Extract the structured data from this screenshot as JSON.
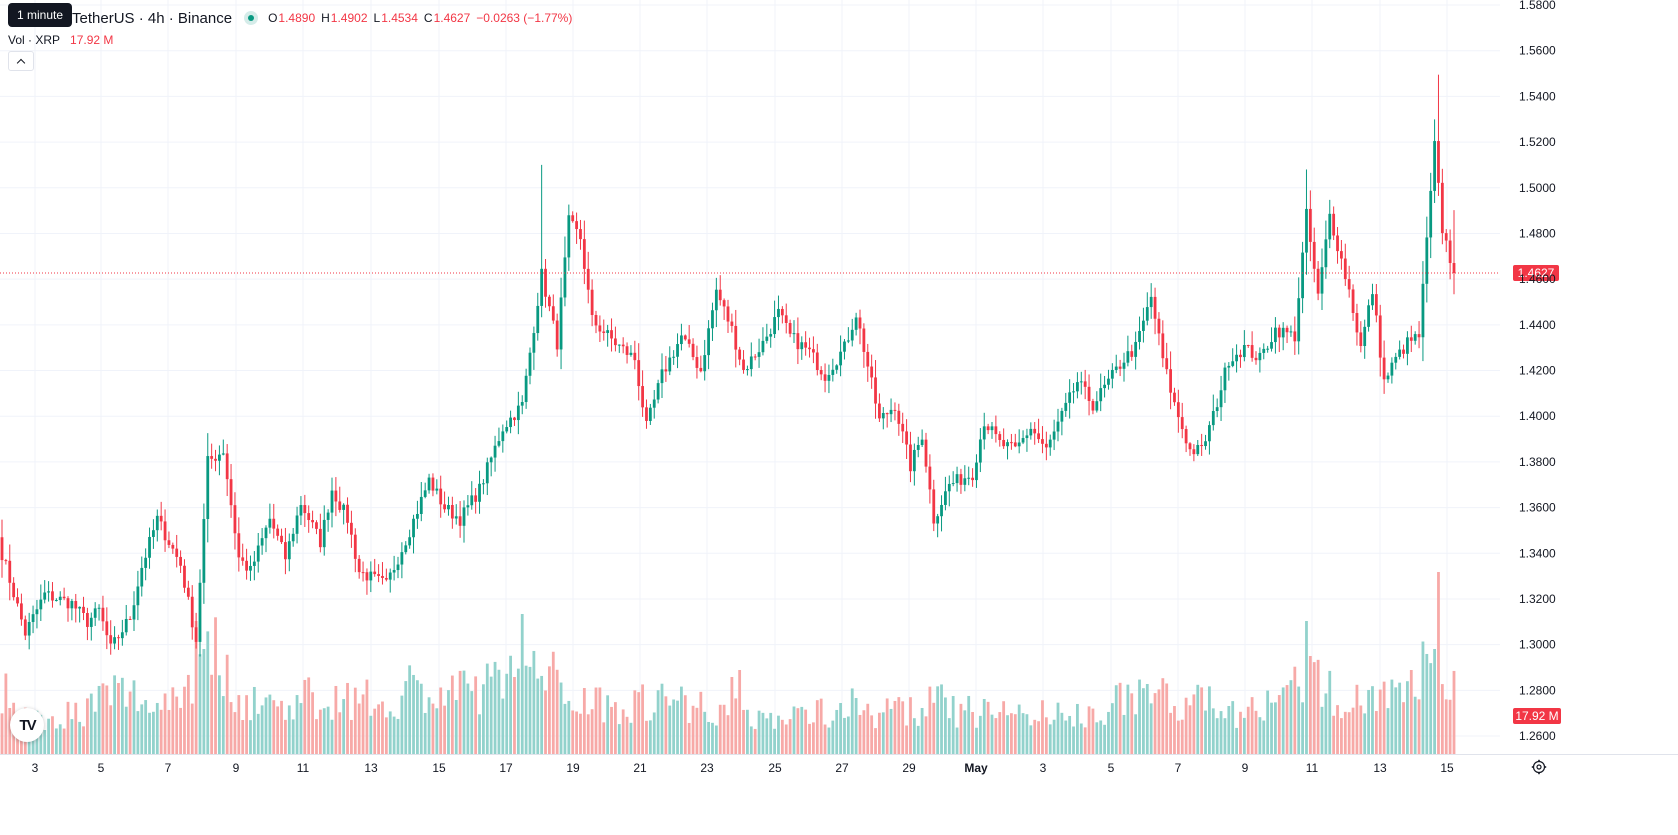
{
  "tooltip": "1 minute",
  "legend": {
    "symbol_title": "TetherUS · 4h · Binance",
    "open_key": "O",
    "open_val": "1.4890",
    "high_key": "H",
    "high_val": "1.4902",
    "low_key": "L",
    "low_val": "1.4534",
    "close_key": "C",
    "close_val": "1.4627",
    "change": "−0.0263 (−1.77%)",
    "volume_label": "Vol · XRP",
    "volume_value": "17.92 M"
  },
  "colors": {
    "up": "#089981",
    "down": "#f23645",
    "vol_up": "#92d2cc",
    "vol_down": "#f7a9a7",
    "grid": "#f0f3fa",
    "text": "#131722"
  },
  "icons": {
    "logo": "tradingview-logo",
    "settings": "gear-icon",
    "collapse": "chevron-up-icon"
  },
  "logo_text": "TV",
  "chart_data": {
    "type": "candlestick",
    "ylim": [
      1.25,
      1.58
    ],
    "y_ticks": [
      "1.2600",
      "1.2800",
      "1.3000",
      "1.3200",
      "1.3400",
      "1.3600",
      "1.3800",
      "1.4000",
      "1.4200",
      "1.4400",
      "1.4600",
      "1.4800",
      "1.5000",
      "1.5200",
      "1.5400",
      "1.5600",
      "1.5800"
    ],
    "x_ticks": [
      "3",
      "5",
      "7",
      "9",
      "11",
      "13",
      "15",
      "17",
      "19",
      "21",
      "23",
      "25",
      "27",
      "29",
      "May",
      "3",
      "5",
      "7",
      "9",
      "11",
      "13",
      "15"
    ],
    "last_price": "1.4627",
    "last_volume": "17.92 M",
    "grid": true,
    "price_anchors": [
      [
        0,
        1.34
      ],
      [
        6,
        1.305
      ],
      [
        11,
        1.322
      ],
      [
        18,
        1.318
      ],
      [
        22,
        1.31
      ],
      [
        25,
        1.315
      ],
      [
        28,
        1.298
      ],
      [
        33,
        1.312
      ],
      [
        36,
        1.334
      ],
      [
        40,
        1.355
      ],
      [
        46,
        1.335
      ],
      [
        50,
        1.302
      ],
      [
        53,
        1.38
      ],
      [
        57,
        1.385
      ],
      [
        61,
        1.338
      ],
      [
        64,
        1.332
      ],
      [
        69,
        1.355
      ],
      [
        73,
        1.338
      ],
      [
        77,
        1.362
      ],
      [
        82,
        1.345
      ],
      [
        85,
        1.368
      ],
      [
        89,
        1.355
      ],
      [
        92,
        1.332
      ],
      [
        99,
        1.326
      ],
      [
        105,
        1.35
      ],
      [
        110,
        1.372
      ],
      [
        114,
        1.36
      ],
      [
        118,
        1.355
      ],
      [
        123,
        1.368
      ],
      [
        129,
        1.395
      ],
      [
        134,
        1.405
      ],
      [
        139,
        1.462
      ],
      [
        143,
        1.432
      ],
      [
        146,
        1.485
      ],
      [
        149,
        1.478
      ],
      [
        152,
        1.442
      ],
      [
        158,
        1.432
      ],
      [
        163,
        1.425
      ],
      [
        166,
        1.395
      ],
      [
        170,
        1.418
      ],
      [
        175,
        1.435
      ],
      [
        180,
        1.42
      ],
      [
        184,
        1.455
      ],
      [
        188,
        1.438
      ],
      [
        191,
        1.42
      ],
      [
        196,
        1.432
      ],
      [
        200,
        1.445
      ],
      [
        203,
        1.435
      ],
      [
        208,
        1.428
      ],
      [
        212,
        1.418
      ],
      [
        217,
        1.43
      ],
      [
        220,
        1.445
      ],
      [
        223,
        1.422
      ],
      [
        226,
        1.398
      ],
      [
        230,
        1.405
      ],
      [
        234,
        1.378
      ],
      [
        237,
        1.392
      ],
      [
        240,
        1.355
      ],
      [
        244,
        1.37
      ],
      [
        250,
        1.375
      ],
      [
        253,
        1.398
      ],
      [
        257,
        1.388
      ],
      [
        261,
        1.385
      ],
      [
        265,
        1.395
      ],
      [
        269,
        1.385
      ],
      [
        273,
        1.4
      ],
      [
        277,
        1.415
      ],
      [
        281,
        1.405
      ],
      [
        285,
        1.415
      ],
      [
        289,
        1.425
      ],
      [
        292,
        1.43
      ],
      [
        296,
        1.452
      ],
      [
        299,
        1.425
      ],
      [
        302,
        1.405
      ],
      [
        306,
        1.385
      ],
      [
        309,
        1.385
      ],
      [
        312,
        1.4
      ],
      [
        316,
        1.425
      ],
      [
        320,
        1.43
      ],
      [
        324,
        1.425
      ],
      [
        328,
        1.438
      ],
      [
        333,
        1.435
      ],
      [
        336,
        1.488
      ],
      [
        339,
        1.452
      ],
      [
        342,
        1.488
      ],
      [
        344,
        1.475
      ],
      [
        347,
        1.455
      ],
      [
        350,
        1.43
      ],
      [
        353,
        1.455
      ],
      [
        356,
        1.415
      ],
      [
        359,
        1.425
      ],
      [
        362,
        1.432
      ],
      [
        365,
        1.435
      ],
      [
        369,
        1.518
      ],
      [
        371,
        1.482
      ],
      [
        374,
        1.4627
      ]
    ],
    "volume_anchors": [
      [
        0,
        0.45
      ],
      [
        8,
        0.25
      ],
      [
        20,
        0.3
      ],
      [
        30,
        0.45
      ],
      [
        40,
        0.35
      ],
      [
        50,
        0.55
      ],
      [
        52,
        0.95
      ],
      [
        60,
        0.4
      ],
      [
        70,
        0.35
      ],
      [
        80,
        0.4
      ],
      [
        90,
        0.4
      ],
      [
        100,
        0.35
      ],
      [
        105,
        0.5
      ],
      [
        110,
        0.4
      ],
      [
        120,
        0.45
      ],
      [
        128,
        0.5
      ],
      [
        133,
        0.95
      ],
      [
        136,
        0.55
      ],
      [
        140,
        0.6
      ],
      [
        145,
        0.45
      ],
      [
        150,
        0.4
      ],
      [
        160,
        0.35
      ],
      [
        170,
        0.4
      ],
      [
        180,
        0.35
      ],
      [
        190,
        0.3
      ],
      [
        200,
        0.25
      ],
      [
        210,
        0.3
      ],
      [
        220,
        0.35
      ],
      [
        226,
        0.3
      ],
      [
        235,
        0.3
      ],
      [
        240,
        0.4
      ],
      [
        245,
        0.3
      ],
      [
        255,
        0.3
      ],
      [
        265,
        0.3
      ],
      [
        275,
        0.25
      ],
      [
        285,
        0.35
      ],
      [
        295,
        0.45
      ],
      [
        300,
        0.4
      ],
      [
        310,
        0.35
      ],
      [
        320,
        0.3
      ],
      [
        330,
        0.35
      ],
      [
        336,
        0.6
      ],
      [
        340,
        0.45
      ],
      [
        345,
        0.4
      ],
      [
        355,
        0.45
      ],
      [
        360,
        0.4
      ],
      [
        365,
        0.55
      ],
      [
        369,
        0.7
      ],
      [
        374,
        0.45
      ]
    ],
    "volume_spikes": [
      [
        50,
        0.95
      ],
      [
        52,
        0.75
      ],
      [
        134,
        1.0
      ],
      [
        132,
        0.55
      ],
      [
        336,
        0.95
      ],
      [
        337,
        0.7
      ],
      [
        370,
        1.3
      ],
      [
        369,
        0.75
      ],
      [
        363,
        0.6
      ],
      [
        188,
        0.55
      ],
      [
        220,
        0.4
      ],
      [
        295,
        0.5
      ],
      [
        190,
        0.6
      ]
    ]
  }
}
